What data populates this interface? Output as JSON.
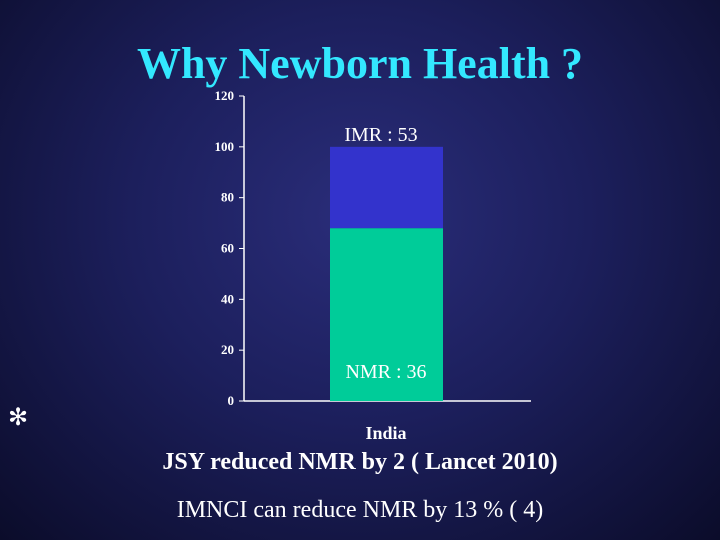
{
  "title": "Why Newborn Health ?",
  "bullet_symbol": "✻",
  "notes": [
    "JSY reduced NMR by 2 ( Lancet 2010)",
    "IMNCI can reduce NMR by 13 % ( 4)"
  ],
  "colors": {
    "title": "#33e8ff",
    "nmr_segment": "#00cc99",
    "imr_segment": "#3333cc"
  },
  "chart_data": {
    "type": "bar",
    "stacked": true,
    "categories": [
      "India"
    ],
    "series": [
      {
        "values": [
          68
        ]
      },
      {
        "values": [
          32
        ]
      }
    ],
    "annotations": [
      "IMR : 53",
      "NMR : 36"
    ],
    "yticks": [
      "0",
      "20",
      "40",
      "60",
      "80",
      "100",
      "120"
    ],
    "ylim": [
      0,
      120
    ],
    "grid": false
  }
}
